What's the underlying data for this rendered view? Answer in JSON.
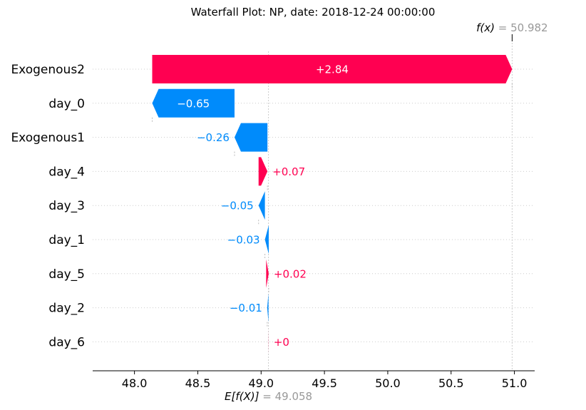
{
  "chart_data": {
    "type": "waterfall",
    "title": "Waterfall Plot: NP, date: 2018-12-24 00:00:00",
    "base_value": 49.058,
    "output_value": 50.982,
    "fx_label": {
      "name": "f(x)",
      "value_text": "= 50.982"
    },
    "efx_label": {
      "name": "E[f(X)]",
      "value_text": "= 49.058"
    },
    "xlim": [
      47.67,
      51.16
    ],
    "x_ticks": [
      {
        "value": 48.0,
        "label": "48.0"
      },
      {
        "value": 48.5,
        "label": "48.5"
      },
      {
        "value": 49.0,
        "label": "49.0"
      },
      {
        "value": 49.5,
        "label": "49.5"
      },
      {
        "value": 50.0,
        "label": "50.0"
      },
      {
        "value": 50.5,
        "label": "50.5"
      },
      {
        "value": 51.0,
        "label": "51.0"
      }
    ],
    "features": [
      {
        "name": "Exogenous2",
        "value": 2.84,
        "start": 48.14,
        "end": 50.982,
        "label": "+2.84"
      },
      {
        "name": "day_0",
        "value": -0.65,
        "start": 48.79,
        "end": 48.14,
        "label": "−0.65"
      },
      {
        "name": "Exogenous1",
        "value": -0.26,
        "start": 49.05,
        "end": 48.79,
        "label": "−0.26"
      },
      {
        "name": "day_4",
        "value": 0.07,
        "start": 48.98,
        "end": 49.05,
        "label": "+0.07"
      },
      {
        "name": "day_3",
        "value": -0.05,
        "start": 49.03,
        "end": 48.98,
        "label": "−0.05"
      },
      {
        "name": "day_1",
        "value": -0.03,
        "start": 49.06,
        "end": 49.03,
        "label": "−0.03"
      },
      {
        "name": "day_5",
        "value": 0.02,
        "start": 49.04,
        "end": 49.06,
        "label": "+0.02"
      },
      {
        "name": "day_2",
        "value": -0.01,
        "start": 49.058,
        "end": 49.048,
        "label": "−0.01"
      },
      {
        "name": "day_6",
        "value": 0.0,
        "start": 49.058,
        "end": 49.059,
        "label": "+0"
      }
    ],
    "colors": {
      "positive": "#ff0051",
      "negative": "#008bfb",
      "muted_text": "#999999",
      "grid": "#cccccc"
    }
  }
}
